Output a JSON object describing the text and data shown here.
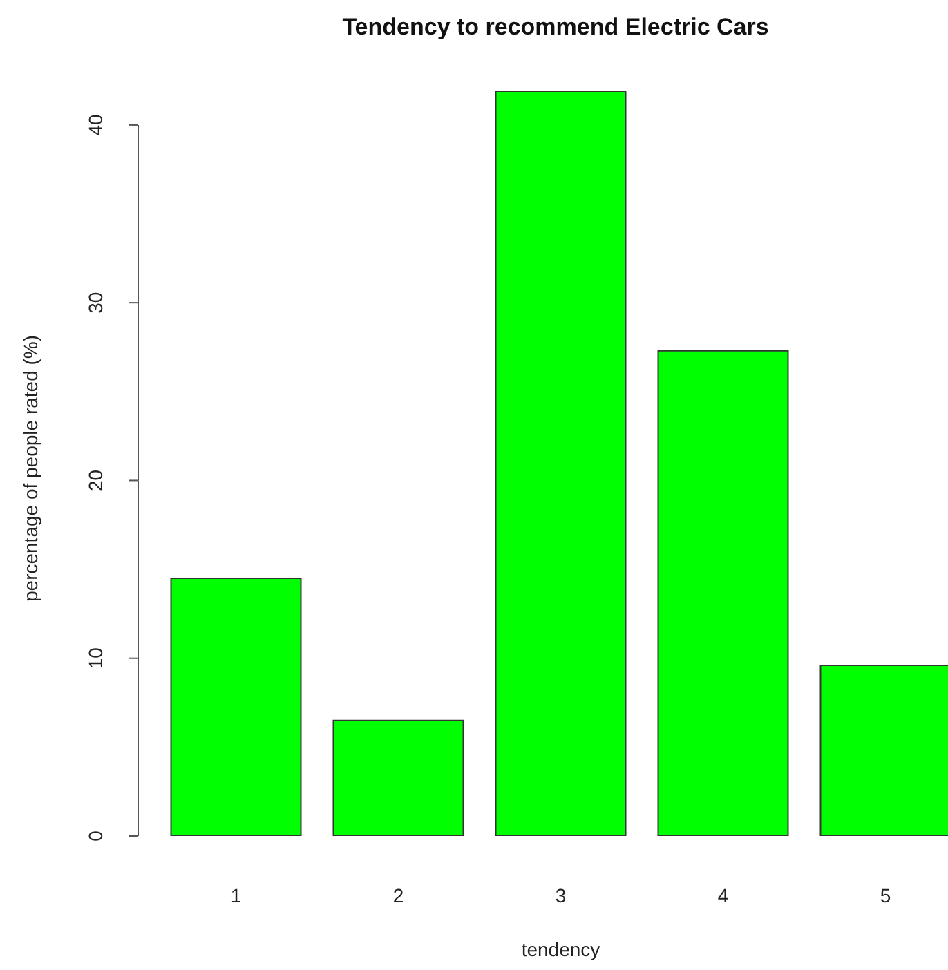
{
  "chart_data": {
    "type": "bar",
    "title": "Tendency to recommend Electric Cars",
    "xlabel": "tendency",
    "ylabel": "percentage of people rated (%)",
    "categories": [
      "1",
      "2",
      "3",
      "4",
      "5"
    ],
    "values": [
      14.5,
      6.5,
      41.9,
      27.3,
      9.6
    ],
    "color": "#00ff00",
    "ylim": [
      0,
      41.9
    ],
    "yticks": [
      0,
      10,
      20,
      30,
      40
    ],
    "grid": false,
    "legend": false
  }
}
